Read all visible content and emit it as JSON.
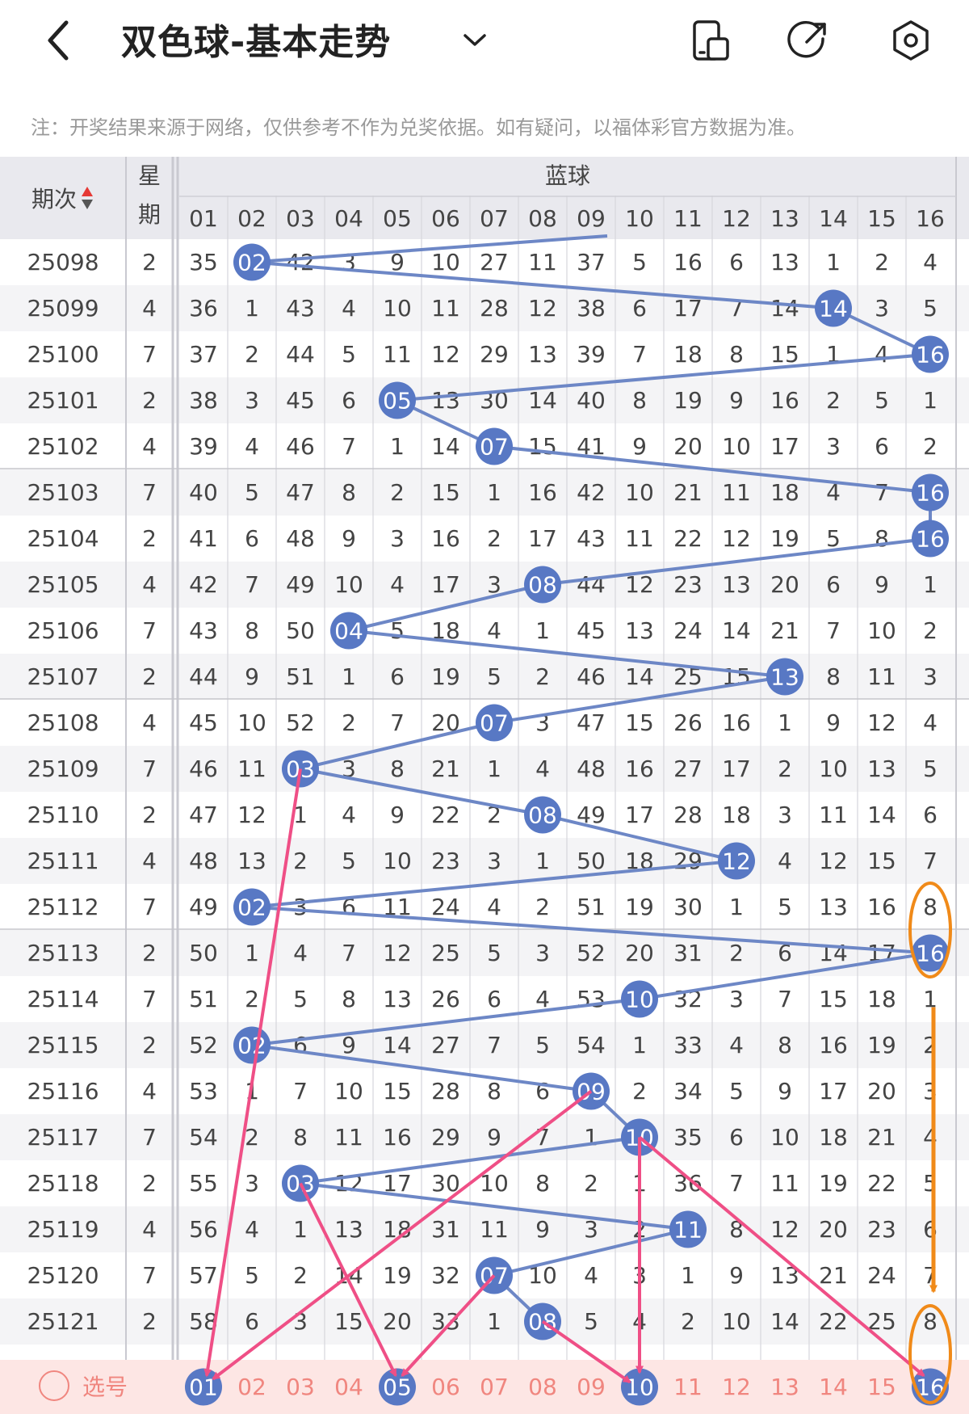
{
  "header": {
    "title": "双色球-基本走势",
    "back_icon": "chevron-left-icon",
    "dropdown_icon": "chevron-down-icon",
    "actions": [
      "layout-icon",
      "share-icon",
      "settings-icon"
    ]
  },
  "notice": "注：开奖结果来源于网络，仅供参考不作为兑奖依据。如有疑问，以福体彩官方数据为准。",
  "table": {
    "period_header": "期次",
    "weekday_header": [
      "星",
      "期"
    ],
    "blue_header": "蓝球",
    "columns": [
      "01",
      "02",
      "03",
      "04",
      "05",
      "06",
      "07",
      "08",
      "09",
      "10",
      "11",
      "12",
      "13",
      "14",
      "15",
      "16"
    ],
    "rows": [
      {
        "period": "25098",
        "weekday": "2",
        "hit": 2,
        "cells": [
          "35",
          "02",
          "42",
          "3",
          "9",
          "10",
          "27",
          "11",
          "37",
          "5",
          "16",
          "6",
          "13",
          "1",
          "2",
          "4"
        ]
      },
      {
        "period": "25099",
        "weekday": "4",
        "hit": 14,
        "cells": [
          "36",
          "1",
          "43",
          "4",
          "10",
          "11",
          "28",
          "12",
          "38",
          "6",
          "17",
          "7",
          "14",
          "14",
          "3",
          "5"
        ]
      },
      {
        "period": "25100",
        "weekday": "7",
        "hit": 16,
        "cells": [
          "37",
          "2",
          "44",
          "5",
          "11",
          "12",
          "29",
          "13",
          "39",
          "7",
          "18",
          "8",
          "15",
          "1",
          "4",
          "16"
        ]
      },
      {
        "period": "25101",
        "weekday": "2",
        "hit": 5,
        "cells": [
          "38",
          "3",
          "45",
          "6",
          "05",
          "13",
          "30",
          "14",
          "40",
          "8",
          "19",
          "9",
          "16",
          "2",
          "5",
          "1"
        ]
      },
      {
        "period": "25102",
        "weekday": "4",
        "hit": 7,
        "cells": [
          "39",
          "4",
          "46",
          "7",
          "1",
          "14",
          "07",
          "15",
          "41",
          "9",
          "20",
          "10",
          "17",
          "3",
          "6",
          "2"
        ]
      },
      {
        "period": "25103",
        "weekday": "7",
        "hit": 16,
        "cells": [
          "40",
          "5",
          "47",
          "8",
          "2",
          "15",
          "1",
          "16",
          "42",
          "10",
          "21",
          "11",
          "18",
          "4",
          "7",
          "16"
        ]
      },
      {
        "period": "25104",
        "weekday": "2",
        "hit": 16,
        "cells": [
          "41",
          "6",
          "48",
          "9",
          "3",
          "16",
          "2",
          "17",
          "43",
          "11",
          "22",
          "12",
          "19",
          "5",
          "8",
          "16"
        ]
      },
      {
        "period": "25105",
        "weekday": "4",
        "hit": 8,
        "cells": [
          "42",
          "7",
          "49",
          "10",
          "4",
          "17",
          "3",
          "08",
          "44",
          "12",
          "23",
          "13",
          "20",
          "6",
          "9",
          "1"
        ]
      },
      {
        "period": "25106",
        "weekday": "7",
        "hit": 4,
        "cells": [
          "43",
          "8",
          "50",
          "04",
          "5",
          "18",
          "4",
          "1",
          "45",
          "13",
          "24",
          "14",
          "21",
          "7",
          "10",
          "2"
        ]
      },
      {
        "period": "25107",
        "weekday": "2",
        "hit": 13,
        "cells": [
          "44",
          "9",
          "51",
          "1",
          "6",
          "19",
          "5",
          "2",
          "46",
          "14",
          "25",
          "15",
          "13",
          "8",
          "11",
          "3"
        ]
      },
      {
        "period": "25108",
        "weekday": "4",
        "hit": 7,
        "cells": [
          "45",
          "10",
          "52",
          "2",
          "7",
          "20",
          "07",
          "3",
          "47",
          "15",
          "26",
          "16",
          "1",
          "9",
          "12",
          "4"
        ]
      },
      {
        "period": "25109",
        "weekday": "7",
        "hit": 3,
        "cells": [
          "46",
          "11",
          "03",
          "3",
          "8",
          "21",
          "1",
          "4",
          "48",
          "16",
          "27",
          "17",
          "2",
          "10",
          "13",
          "5"
        ]
      },
      {
        "period": "25110",
        "weekday": "2",
        "hit": 8,
        "cells": [
          "47",
          "12",
          "1",
          "4",
          "9",
          "22",
          "2",
          "08",
          "49",
          "17",
          "28",
          "18",
          "3",
          "11",
          "14",
          "6"
        ]
      },
      {
        "period": "25111",
        "weekday": "4",
        "hit": 12,
        "cells": [
          "48",
          "13",
          "2",
          "5",
          "10",
          "23",
          "3",
          "1",
          "50",
          "18",
          "29",
          "12",
          "4",
          "12",
          "15",
          "7"
        ]
      },
      {
        "period": "25112",
        "weekday": "7",
        "hit": 2,
        "cells": [
          "49",
          "02",
          "3",
          "6",
          "11",
          "24",
          "4",
          "2",
          "51",
          "19",
          "30",
          "1",
          "5",
          "13",
          "16",
          "8"
        ]
      },
      {
        "period": "25113",
        "weekday": "2",
        "hit": 16,
        "cells": [
          "50",
          "1",
          "4",
          "7",
          "12",
          "25",
          "5",
          "3",
          "52",
          "20",
          "31",
          "2",
          "6",
          "14",
          "17",
          "16"
        ]
      },
      {
        "period": "25114",
        "weekday": "7",
        "hit": 10,
        "cells": [
          "51",
          "2",
          "5",
          "8",
          "13",
          "26",
          "6",
          "4",
          "53",
          "10",
          "32",
          "3",
          "7",
          "15",
          "18",
          "1"
        ]
      },
      {
        "period": "25115",
        "weekday": "2",
        "hit": 2,
        "cells": [
          "52",
          "02",
          "6",
          "9",
          "14",
          "27",
          "7",
          "5",
          "54",
          "1",
          "33",
          "4",
          "8",
          "16",
          "19",
          "2"
        ]
      },
      {
        "period": "25116",
        "weekday": "4",
        "hit": 9,
        "cells": [
          "53",
          "1",
          "7",
          "10",
          "15",
          "28",
          "8",
          "6",
          "09",
          "2",
          "34",
          "5",
          "9",
          "17",
          "20",
          "3"
        ]
      },
      {
        "period": "25117",
        "weekday": "7",
        "hit": 10,
        "cells": [
          "54",
          "2",
          "8",
          "11",
          "16",
          "29",
          "9",
          "7",
          "1",
          "10",
          "35",
          "6",
          "10",
          "18",
          "21",
          "4"
        ]
      },
      {
        "period": "25118",
        "weekday": "2",
        "hit": 3,
        "cells": [
          "55",
          "3",
          "03",
          "12",
          "17",
          "30",
          "10",
          "8",
          "2",
          "1",
          "36",
          "7",
          "11",
          "19",
          "22",
          "5"
        ]
      },
      {
        "period": "25119",
        "weekday": "4",
        "hit": 11,
        "cells": [
          "56",
          "4",
          "1",
          "13",
          "18",
          "31",
          "11",
          "9",
          "3",
          "2",
          "11",
          "8",
          "12",
          "20",
          "23",
          "6"
        ]
      },
      {
        "period": "25120",
        "weekday": "7",
        "hit": 7,
        "cells": [
          "57",
          "5",
          "2",
          "14",
          "19",
          "32",
          "07",
          "10",
          "4",
          "3",
          "1",
          "9",
          "13",
          "21",
          "24",
          "7"
        ]
      },
      {
        "period": "25121",
        "weekday": "2",
        "hit": 8,
        "cells": [
          "58",
          "6",
          "3",
          "15",
          "20",
          "33",
          "1",
          "08",
          "5",
          "4",
          "2",
          "10",
          "14",
          "22",
          "25",
          "8"
        ]
      }
    ]
  },
  "select_row": {
    "label": "选号",
    "numbers": [
      "01",
      "02",
      "03",
      "04",
      "05",
      "06",
      "07",
      "08",
      "09",
      "10",
      "11",
      "12",
      "13",
      "14",
      "15",
      "16"
    ],
    "selected": [
      1,
      5,
      10,
      16
    ]
  },
  "colors": {
    "ball": "#5878c4",
    "line": "#6d87c6",
    "pink_arrow": "#ef4f86",
    "orange_mark": "#f08a19",
    "select_bg": "#fde6e4",
    "select_text": "#f0867f"
  }
}
